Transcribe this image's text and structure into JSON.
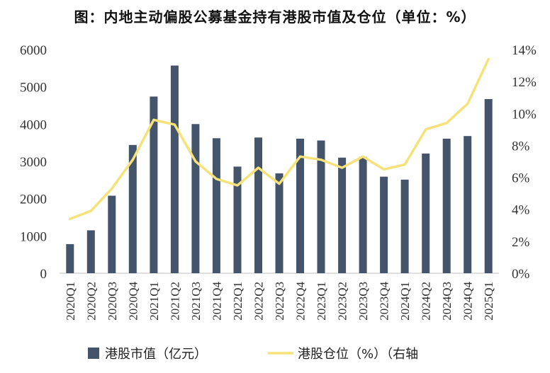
{
  "chart_data": {
    "type": "bar+line",
    "title": "图：内地主动偏股公募基金持有港股市值及仓位（单位：%）",
    "categories": [
      "2020Q1",
      "2020Q2",
      "2020Q3",
      "2020Q4",
      "2021Q1",
      "2021Q2",
      "2021Q3",
      "2021Q4",
      "2022Q1",
      "2022Q2",
      "2022Q3",
      "2022Q4",
      "2023Q1",
      "2023Q2",
      "2023Q3",
      "2023Q4",
      "2024Q1",
      "2024Q2",
      "2024Q3",
      "2024Q4",
      "2025Q1"
    ],
    "series": [
      {
        "name": "港股市值（亿元）",
        "type": "bar",
        "axis": "left",
        "color": "#44546a",
        "values": [
          780,
          1150,
          2080,
          3440,
          4740,
          5570,
          4000,
          3620,
          2860,
          3640,
          2680,
          3610,
          3560,
          3100,
          3120,
          2590,
          2510,
          3210,
          3610,
          3680,
          4670
        ]
      },
      {
        "name": "港股仓位（%）（右轴",
        "type": "line",
        "axis": "right",
        "color": "#f5e27a",
        "values": [
          3.4,
          3.9,
          5.3,
          7.1,
          9.6,
          9.3,
          7.0,
          5.9,
          5.5,
          6.6,
          5.6,
          7.3,
          7.1,
          6.6,
          7.3,
          6.5,
          6.8,
          9.0,
          9.4,
          10.6,
          13.4
        ]
      }
    ],
    "left_axis": {
      "min": 0,
      "max": 6000,
      "ticks": [
        "0",
        "1000",
        "2000",
        "3000",
        "4000",
        "5000",
        "6000"
      ]
    },
    "right_axis": {
      "min": 0,
      "max": 14,
      "ticks": [
        "0%",
        "2%",
        "4%",
        "6%",
        "8%",
        "10%",
        "12%",
        "14%"
      ]
    },
    "legend_position": "bottom"
  }
}
